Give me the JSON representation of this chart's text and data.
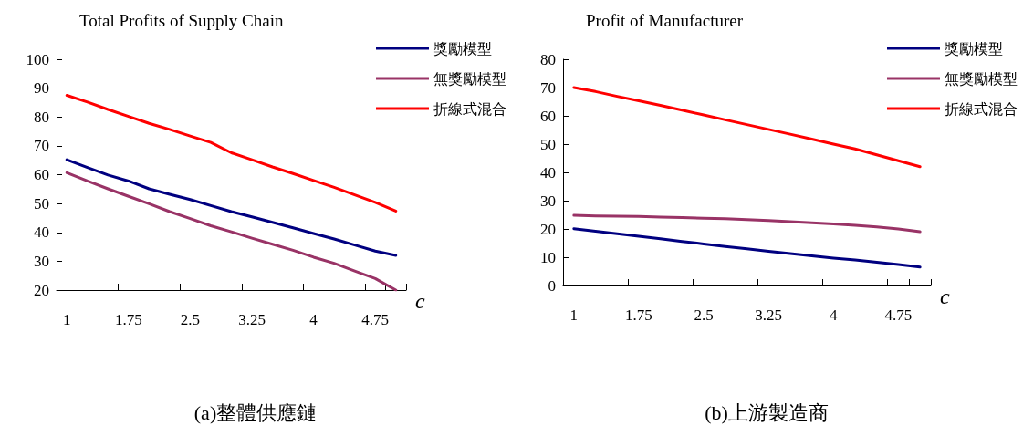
{
  "chart_data": [
    {
      "type": "line",
      "title": "Total Profits of Supply Chain",
      "xlabel": "c",
      "annotations": [
        "(a)整體供應鏈"
      ],
      "categories": [
        "1",
        null,
        null,
        "1.75",
        null,
        null,
        "2.5",
        null,
        null,
        "3.25",
        null,
        null,
        "4",
        null,
        null,
        "4.75",
        null
      ],
      "ylim": [
        20,
        100
      ],
      "yticks": [
        20,
        30,
        40,
        50,
        60,
        70,
        80,
        90,
        100
      ],
      "grid": false,
      "legend": "top right",
      "marker": "none",
      "series": [
        {
          "name": "獎勵模型",
          "color": "#000080",
          "values": [
            65.2,
            62.5,
            59.9,
            57.8,
            55.1,
            53.2,
            51.4,
            49.3,
            47.2,
            45.4,
            43.5,
            41.6,
            39.6,
            37.7,
            35.6,
            33.5,
            32.0
          ]
        },
        {
          "name": "無獎勵模型",
          "color": "#993366",
          "values": [
            60.7,
            57.8,
            55.1,
            52.5,
            49.9,
            47.2,
            44.8,
            42.3,
            40.2,
            38.0,
            35.9,
            33.8,
            31.4,
            29.3,
            26.6,
            24.0,
            20.0
          ]
        },
        {
          "name": "折線式混合",
          "color": "#ff0000",
          "values": [
            87.5,
            85.2,
            82.6,
            80.2,
            77.8,
            75.7,
            73.4,
            71.2,
            67.6,
            65.2,
            62.7,
            60.4,
            58.0,
            55.6,
            53.0,
            50.4,
            47.4
          ]
        }
      ]
    },
    {
      "type": "line",
      "title": "Profit of Manufacturer",
      "xlabel": "c",
      "annotations": [
        "(b)上游製造商"
      ],
      "categories": [
        "1",
        null,
        null,
        "1.75",
        null,
        null,
        "2.5",
        null,
        null,
        "3.25",
        null,
        null,
        "4",
        null,
        null,
        "4.75",
        null
      ],
      "ylim": [
        0,
        80
      ],
      "yticks": [
        0,
        10,
        20,
        30,
        40,
        50,
        60,
        70,
        80
      ],
      "grid": false,
      "legend": "top right",
      "marker": "none",
      "series": [
        {
          "name": "獎勵模型",
          "color": "#000080",
          "values": [
            20.1,
            19.2,
            18.3,
            17.4,
            16.5,
            15.6,
            14.7,
            13.8,
            13.0,
            12.1,
            11.3,
            10.5,
            9.7,
            9.0,
            8.2,
            7.4,
            6.5
          ]
        },
        {
          "name": "無獎勵模型",
          "color": "#993366",
          "values": [
            24.8,
            24.6,
            24.5,
            24.4,
            24.2,
            24.0,
            23.8,
            23.6,
            23.3,
            23.0,
            22.6,
            22.2,
            21.8,
            21.3,
            20.7,
            20.0,
            19.0
          ]
        },
        {
          "name": "折線式混合",
          "color": "#ff0000",
          "values": [
            70.0,
            68.6,
            66.9,
            65.3,
            63.7,
            62.0,
            60.3,
            58.6,
            56.9,
            55.2,
            53.5,
            51.8,
            50.0,
            48.3,
            46.2,
            44.1,
            42.0
          ]
        }
      ]
    }
  ]
}
